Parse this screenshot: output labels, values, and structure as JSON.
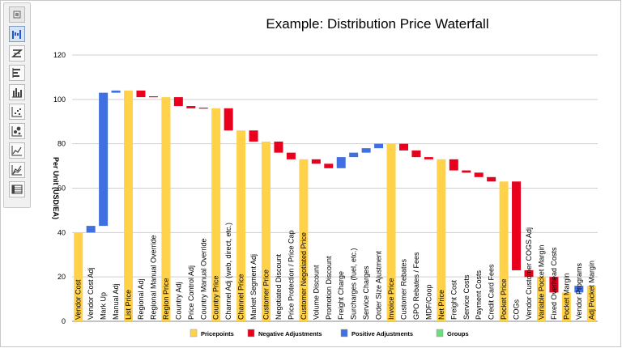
{
  "chart_data": {
    "type": "bar",
    "subtype": "waterfall",
    "title": "Example: Distribution Price Waterfall",
    "ylabel": "Per Unit (USD/EA)",
    "xlabel": "",
    "ylim": [
      0,
      120
    ],
    "yticks": [
      0,
      20,
      40,
      60,
      80,
      100,
      120
    ],
    "grid": true,
    "legend_position": "bottom",
    "legend": [
      {
        "key": "pricepoint",
        "label": "Pricepoints",
        "color": "#ffd24a"
      },
      {
        "key": "negative",
        "label": "Negative Adjustments",
        "color": "#e8001c"
      },
      {
        "key": "positive",
        "label": "Positive Adjustments",
        "color": "#3f6fe0"
      },
      {
        "key": "group",
        "label": "Groups",
        "color": "#6edc7a"
      }
    ],
    "categories": [
      "Vendor Cost",
      "Vendor Cost Adj",
      "Mark Up",
      "Manual Adj",
      "List Price",
      "Regional Adj",
      "Regional Manual Override",
      "Region Price",
      "Country Adj",
      "Price Control Adj",
      "Country Manual Override",
      "Country Price",
      "Channel Adj (web, direct, etc.)",
      "Channel Price",
      "Market Segment Adj",
      "Customer Price",
      "Negotiated Discount",
      "Price Protection / Price Cap",
      "Customer Negotiated Price",
      "Volume Discount",
      "Promotion Discount",
      "Freight Charge",
      "Surcharges (fuel, etc.)",
      "Service Charges",
      "Order Size Ajustment",
      "Invoice Price",
      "Customer Rebates",
      "GPO Rebates / Fees",
      "MDF/Coop",
      "Net Price",
      "Freight Cost",
      "Service Costs",
      "Payment Costs",
      "Credit Card Fees",
      "Pocket Price",
      "COGs",
      "Vendor Customer COGS Adj",
      "Variable Pocket Margin",
      "Fixed Overhead Costs",
      "Pocket Margin",
      "Vendor Programs",
      "Adj Pocket Margin"
    ],
    "bars": [
      {
        "type": "pricepoint",
        "low": 0,
        "high": 40
      },
      {
        "type": "positive",
        "low": 40,
        "high": 43
      },
      {
        "type": "positive",
        "low": 43,
        "high": 103
      },
      {
        "type": "positive",
        "low": 103,
        "high": 104
      },
      {
        "type": "pricepoint",
        "low": 0,
        "high": 104
      },
      {
        "type": "negative",
        "low": 101,
        "high": 104
      },
      {
        "type": "negative",
        "low": 101,
        "high": 101.4
      },
      {
        "type": "pricepoint",
        "low": 0,
        "high": 101
      },
      {
        "type": "negative",
        "low": 97,
        "high": 101
      },
      {
        "type": "negative",
        "low": 96,
        "high": 97
      },
      {
        "type": "negative",
        "low": 96,
        "high": 96.3
      },
      {
        "type": "pricepoint",
        "low": 0,
        "high": 96
      },
      {
        "type": "negative",
        "low": 86,
        "high": 96
      },
      {
        "type": "pricepoint",
        "low": 0,
        "high": 86
      },
      {
        "type": "negative",
        "low": 81,
        "high": 86
      },
      {
        "type": "pricepoint",
        "low": 0,
        "high": 81
      },
      {
        "type": "negative",
        "low": 76,
        "high": 81
      },
      {
        "type": "negative",
        "low": 73,
        "high": 76
      },
      {
        "type": "pricepoint",
        "low": 0,
        "high": 73
      },
      {
        "type": "negative",
        "low": 71,
        "high": 73
      },
      {
        "type": "negative",
        "low": 69,
        "high": 71
      },
      {
        "type": "positive",
        "low": 69,
        "high": 74
      },
      {
        "type": "positive",
        "low": 74,
        "high": 76
      },
      {
        "type": "positive",
        "low": 76,
        "high": 78
      },
      {
        "type": "positive",
        "low": 78,
        "high": 80
      },
      {
        "type": "pricepoint",
        "low": 0,
        "high": 80
      },
      {
        "type": "negative",
        "low": 77,
        "high": 80
      },
      {
        "type": "negative",
        "low": 74,
        "high": 77
      },
      {
        "type": "negative",
        "low": 73,
        "high": 74
      },
      {
        "type": "pricepoint",
        "low": 0,
        "high": 73
      },
      {
        "type": "negative",
        "low": 68,
        "high": 73
      },
      {
        "type": "negative",
        "low": 67,
        "high": 68
      },
      {
        "type": "negative",
        "low": 65,
        "high": 67
      },
      {
        "type": "negative",
        "low": 63,
        "high": 65
      },
      {
        "type": "pricepoint",
        "low": 0,
        "high": 63
      },
      {
        "type": "negative",
        "low": 23,
        "high": 63
      },
      {
        "type": "negative",
        "low": 20,
        "high": 23
      },
      {
        "type": "pricepoint",
        "low": 0,
        "high": 20
      },
      {
        "type": "negative",
        "low": 13,
        "high": 20
      },
      {
        "type": "pricepoint",
        "low": 0,
        "high": 13
      },
      {
        "type": "positive",
        "low": 13,
        "high": 16
      },
      {
        "type": "pricepoint",
        "low": 0,
        "high": 16
      }
    ]
  },
  "toolbar": {
    "items": [
      {
        "icon": "panel-toggle-icon"
      },
      {
        "icon": "waterfall-chart-icon",
        "selected": true
      },
      {
        "icon": "z-chart-icon"
      },
      {
        "icon": "horizontal-bar-icon"
      },
      {
        "icon": "column-chart-icon"
      },
      {
        "icon": "scatter-chart-icon"
      },
      {
        "icon": "bubble-chart-icon"
      },
      {
        "icon": "line-chart-icon"
      },
      {
        "icon": "area-chart-icon"
      },
      {
        "icon": "data-table-icon"
      }
    ]
  }
}
